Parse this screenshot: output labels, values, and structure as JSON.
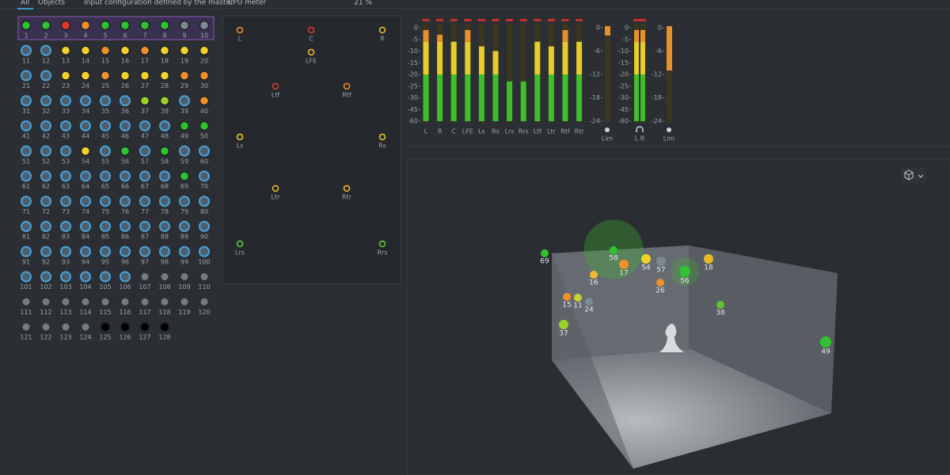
{
  "tabs": [
    "All",
    "Objects"
  ],
  "header": {
    "input_config": "Input configuration defined by the master",
    "cpu_label": "CPU meter",
    "cpu_value": "21 %"
  },
  "objects": {
    "labels": [
      1,
      2,
      3,
      4,
      5,
      6,
      7,
      8,
      9,
      10,
      11,
      12,
      13,
      14,
      15,
      16,
      17,
      18,
      19,
      20,
      21,
      22,
      23,
      24,
      25,
      26,
      27,
      28,
      29,
      30,
      31,
      32,
      33,
      34,
      35,
      36,
      37,
      38,
      39,
      40,
      41,
      42,
      43,
      44,
      45,
      46,
      47,
      48,
      49,
      50,
      51,
      52,
      53,
      54,
      55,
      56,
      57,
      58,
      59,
      60,
      61,
      62,
      63,
      64,
      65,
      66,
      67,
      68,
      69,
      70,
      71,
      72,
      73,
      74,
      75,
      76,
      77,
      78,
      79,
      80,
      81,
      82,
      83,
      84,
      85,
      86,
      87,
      88,
      89,
      90,
      91,
      92,
      93,
      94,
      95,
      96,
      97,
      98,
      99,
      100,
      101,
      102,
      103,
      104,
      105,
      106,
      107,
      108,
      109,
      110,
      111,
      112,
      113,
      114,
      115,
      116,
      117,
      118,
      119,
      120,
      121,
      122,
      123,
      124,
      125,
      126,
      127,
      128
    ],
    "states": [
      "g",
      "g",
      "r",
      "o",
      "g",
      "g",
      "g",
      "g",
      "n",
      "n",
      "b",
      "b",
      "y",
      "y",
      "o",
      "y",
      "o",
      "y",
      "y",
      "y",
      "b",
      "b",
      "y",
      "y",
      "o",
      "y",
      "y",
      "y",
      "o",
      "o",
      "b",
      "b",
      "b",
      "b",
      "b",
      "b",
      "l",
      "l",
      "b",
      "o",
      "b",
      "b",
      "b",
      "b",
      "b",
      "b",
      "b",
      "b",
      "g",
      "g",
      "b",
      "b",
      "b",
      "y",
      "b",
      "g",
      "b",
      "g",
      "b",
      "b",
      "b",
      "b",
      "b",
      "b",
      "b",
      "b",
      "b",
      "b",
      "g",
      "b",
      "b",
      "b",
      "b",
      "b",
      "b",
      "b",
      "b",
      "b",
      "b",
      "b",
      "b",
      "b",
      "b",
      "b",
      "b",
      "b",
      "b",
      "b",
      "b",
      "b",
      "b",
      "b",
      "b",
      "b",
      "b",
      "b",
      "b",
      "b",
      "b",
      "b",
      "b",
      "b",
      "b",
      "b",
      "b",
      "b",
      "d",
      "d",
      "d",
      "d",
      "d",
      "d",
      "d",
      "d",
      "d",
      "d",
      "d",
      "d",
      "d",
      "d",
      "d",
      "d",
      "d",
      "d"
    ]
  },
  "state_colors": {
    "g": "#2fc32f",
    "r": "#e0392b",
    "o": "#f0902a",
    "y": "#f2d22a",
    "l": "#9ad22a",
    "n": "#7d8a96",
    "b": "#4d5f6e",
    "d": "#737b83"
  },
  "speakers": [
    {
      "label": "L",
      "color": "#f0902a"
    },
    {
      "label": "C",
      "color": "#e0392b"
    },
    {
      "label": "R",
      "color": "#f2c02a"
    },
    {
      "label": "LFE",
      "color": "#f2c02a"
    },
    {
      "label": "Ltf",
      "color": "#e0392b"
    },
    {
      "label": "Rtf",
      "color": "#f0902a"
    },
    {
      "label": "Ls",
      "color": "#f2d22a"
    },
    {
      "label": "Rs",
      "color": "#f2d22a"
    },
    {
      "label": "Ltr",
      "color": "#f2c02a"
    },
    {
      "label": "Rtr",
      "color": "#f2c02a"
    },
    {
      "label": "Lrs",
      "color": "#5fd23a"
    },
    {
      "label": "Rrs",
      "color": "#5fd23a"
    }
  ],
  "meters": {
    "ticks": [
      0,
      -5,
      -10,
      -15,
      -20,
      -25,
      -30,
      -45,
      -60
    ],
    "channels": [
      {
        "label": "L",
        "level": -1
      },
      {
        "label": "R",
        "level": -3
      },
      {
        "label": "C",
        "level": -6
      },
      {
        "label": "LFE",
        "level": -1
      },
      {
        "label": "Ls",
        "level": -8
      },
      {
        "label": "Rs",
        "level": -10
      },
      {
        "label": "Lrs",
        "level": -23
      },
      {
        "label": "Rrs",
        "level": -23
      },
      {
        "label": "Ltf",
        "level": -6
      },
      {
        "label": "Ltr",
        "level": -8
      },
      {
        "label": "Rtf",
        "level": -1
      },
      {
        "label": "Rtr",
        "level": -6
      }
    ]
  },
  "limiter_ticks": [
    0,
    -6,
    -12,
    -18,
    -24
  ],
  "limiters": [
    {
      "label": "Lim",
      "level": -2
    },
    {
      "label": "Lim",
      "level": -11
    }
  ],
  "headphone": {
    "label": "L R",
    "levels": [
      -1,
      -1
    ]
  },
  "room_objects": [
    {
      "label": "69",
      "color": "#2fc32f"
    },
    {
      "label": "58",
      "color": "#2fc32f"
    },
    {
      "label": "17",
      "color": "#f0902a"
    },
    {
      "label": "54",
      "color": "#f2d22a"
    },
    {
      "label": "57",
      "color": "#7d8a96"
    },
    {
      "label": "56",
      "color": "#2fc32f"
    },
    {
      "label": "18",
      "color": "#e6b82a"
    },
    {
      "label": "16",
      "color": "#f2b82a"
    },
    {
      "label": "26",
      "color": "#f0902a"
    },
    {
      "label": "15",
      "color": "#f0902a"
    },
    {
      "label": "11",
      "color": "#c8d22a"
    },
    {
      "label": "24",
      "color": "#7d8a96"
    },
    {
      "label": "37",
      "color": "#9ad22a"
    },
    {
      "label": "38",
      "color": "#5fc32f"
    },
    {
      "label": "49",
      "color": "#2fc32f"
    }
  ]
}
